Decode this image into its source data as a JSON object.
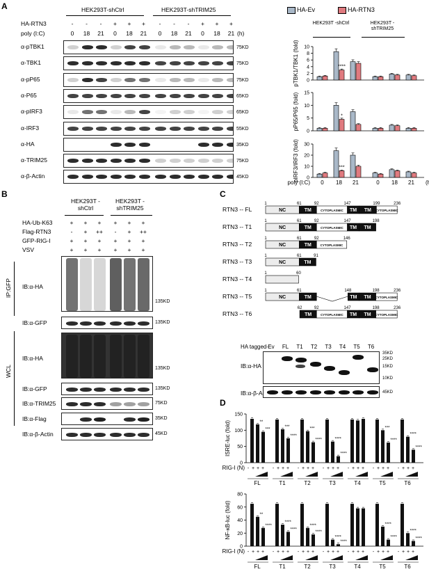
{
  "panel_labels": {
    "a": "A",
    "b": "B",
    "c": "C",
    "d": "D"
  },
  "panelA": {
    "groups": [
      "HEK293T-shCtrl",
      "HEK293T-shTRIM25"
    ],
    "row_labels": {
      "ha": "HA-RTN3",
      "polyic": "poly (I:C)"
    },
    "ha_signs": [
      "-",
      "-",
      "-",
      "+",
      "+",
      "+",
      "-",
      "-",
      "-",
      "+",
      "+",
      "+"
    ],
    "polyic_values": [
      "0",
      "18",
      "21",
      "0",
      "18",
      "21",
      "0",
      "18",
      "21",
      "0",
      "18",
      "21"
    ],
    "unit": "(h)",
    "blots": [
      {
        "label": "α-pTBK1",
        "mw": "75KD"
      },
      {
        "label": "α-TBK1",
        "mw": "75KD"
      },
      {
        "label": "α-pP65",
        "mw": "75KD"
      },
      {
        "label": "α-P65",
        "mw": "65KD"
      },
      {
        "label": "α-pIRF3",
        "mw": "65KD"
      },
      {
        "label": "α-IRF3",
        "mw": "55KD"
      },
      {
        "label": "α-HA",
        "mw": "35KD"
      },
      {
        "label": "α-TRIM25",
        "mw": "75KD"
      },
      {
        "label": "α-β-Actin",
        "mw": "45KD"
      }
    ]
  },
  "chart_data": [
    {
      "type": "bar",
      "ylabel": "pTBK1/TBK1 (fold)",
      "categories": [
        "0",
        "18",
        "21",
        "0",
        "18",
        "21"
      ],
      "groups": [
        "HEK293T -shCtrl",
        "HEK293T -shTRIM25"
      ],
      "ylim": [
        0,
        10
      ],
      "yticks": [
        "0",
        "2",
        "4",
        "6",
        "8",
        "10"
      ],
      "series": [
        {
          "name": "HA-Ev",
          "color": "#a9b8c8",
          "values": [
            1,
            8.5,
            5.5,
            1,
            1.8,
            1.5
          ]
        },
        {
          "name": "HA-RTN3",
          "color": "#e07a7f",
          "values": [
            1.2,
            3,
            5,
            1,
            1.5,
            1.3
          ]
        }
      ],
      "annotations": [
        {
          "category": "18",
          "text": "****"
        }
      ]
    },
    {
      "type": "bar",
      "ylabel": "pP65/P65 (fold)",
      "categories": [
        "0",
        "18",
        "21",
        "0",
        "18",
        "21"
      ],
      "ylim": [
        0,
        15
      ],
      "yticks": [
        "0",
        "5",
        "10",
        "15"
      ],
      "series": [
        {
          "name": "HA-Ev",
          "color": "#a9b8c8",
          "values": [
            1,
            10,
            7.5,
            1,
            2.2,
            1
          ]
        },
        {
          "name": "HA-RTN3",
          "color": "#e07a7f",
          "values": [
            1,
            4.5,
            2.5,
            1,
            2,
            1
          ]
        }
      ],
      "annotations": [
        {
          "category": "18",
          "text": "*"
        }
      ]
    },
    {
      "type": "bar",
      "ylabel": "pIRF3/IRF3 (fold)",
      "xlabel": "poly (I:C)",
      "xunit": "(h)",
      "categories": [
        "0",
        "18",
        "21",
        "0",
        "18",
        "21"
      ],
      "ylim": [
        0,
        30
      ],
      "yticks": [
        "0",
        "10",
        "20",
        "30"
      ],
      "series": [
        {
          "name": "HA-Ev",
          "color": "#a9b8c8",
          "values": [
            3,
            24,
            20,
            4,
            7,
            5
          ]
        },
        {
          "name": "HA-RTN3",
          "color": "#e07a7f",
          "values": [
            4,
            6,
            10,
            3,
            6,
            4
          ]
        }
      ],
      "annotations": [
        {
          "category": "18",
          "text": "***"
        }
      ]
    },
    {
      "type": "bar",
      "ylabel": "ISRE-luc (fold)",
      "xlabel": "RIG-I (N)",
      "groups": [
        "FL",
        "T1",
        "T2",
        "T3",
        "T4",
        "T5",
        "T6"
      ],
      "ylim": [
        0,
        150
      ],
      "yticks": [
        "0",
        "50",
        "100",
        "150"
      ],
      "series": [
        {
          "name": "",
          "values": [
            [
              135,
              118,
              95
            ],
            [
              133,
              103,
              75
            ],
            [
              133,
              97,
              63
            ],
            [
              133,
              65,
              20
            ],
            [
              133,
              130,
              135
            ],
            [
              133,
              100,
              62
            ],
            [
              133,
              80,
              40
            ]
          ]
        }
      ],
      "annotations": [
        [
          "",
          "**",
          "***"
        ],
        [
          "",
          "***",
          "****"
        ],
        [
          "",
          "***",
          "****"
        ],
        [
          "",
          "****",
          "****"
        ],
        [
          "",
          "",
          ""
        ],
        [
          "",
          "***",
          "****"
        ],
        [
          "",
          "****",
          "****"
        ]
      ]
    },
    {
      "type": "bar",
      "ylabel": "NF-κB-luc (fold)",
      "xlabel": "RIG-I (N)",
      "groups": [
        "FL",
        "T1",
        "T2",
        "T3",
        "T4",
        "T5",
        "T6"
      ],
      "ylim": [
        0,
        80
      ],
      "yticks": [
        "0",
        "20",
        "40",
        "60",
        "80"
      ],
      "series": [
        {
          "name": "",
          "values": [
            [
              65,
              45,
              28
            ],
            [
              65,
              33,
              22
            ],
            [
              65,
              28,
              18
            ],
            [
              65,
              10,
              3
            ],
            [
              65,
              58,
              58
            ],
            [
              65,
              30,
              10
            ],
            [
              65,
              20,
              8
            ]
          ]
        }
      ],
      "annotations": [
        [
          "",
          "**",
          "****"
        ],
        [
          "",
          "****",
          "****"
        ],
        [
          "",
          "****",
          "****"
        ],
        [
          "",
          "****",
          "****"
        ],
        [
          "",
          "",
          ""
        ],
        [
          "",
          "****",
          "****"
        ],
        [
          "",
          "****",
          "****"
        ]
      ]
    }
  ],
  "panelB": {
    "groups": [
      "HEK293T -shCtrl",
      "HEK293T -shTRIM25"
    ],
    "rows": [
      {
        "label": "HA-Ub-K63",
        "signs": [
          "+",
          "+",
          "+",
          "+",
          "+",
          "+"
        ]
      },
      {
        "label": "Flag-RTN3",
        "signs": [
          "-",
          "+",
          "++",
          "-",
          "+",
          "++"
        ]
      },
      {
        "label": "GFP-RIG-I",
        "signs": [
          "+",
          "+",
          "+",
          "+",
          "+",
          "+"
        ]
      },
      {
        "label": "VSV",
        "signs": [
          "+",
          "+",
          "+",
          "+",
          "+",
          "+"
        ]
      }
    ],
    "ip_label": "IP:GFP",
    "wcl_label": "WCL",
    "ip_blots": [
      {
        "label": "IB:α-HA",
        "mw": "135KD"
      },
      {
        "label": "IB:α-GFP",
        "mw": "135KD"
      }
    ],
    "wcl_blots": [
      {
        "label": "IB:α-HA",
        "mw": "135KD"
      },
      {
        "label": "IB:α-GFP",
        "mw": "135KD"
      },
      {
        "label": "IB:α-TRIM25",
        "mw": "75KD"
      },
      {
        "label": "IB:α-Flag",
        "mw": "35KD"
      },
      {
        "label": "IB:α-β-Actin",
        "mw": "45KD"
      }
    ]
  },
  "panelC": {
    "constructs": [
      {
        "name": "RTN3 -- FL",
        "nums": [
          "1",
          "61",
          "92",
          "147",
          "199",
          "236"
        ]
      },
      {
        "name": "RTN3 -- T1",
        "nums": [
          "1",
          "61",
          "92",
          "147",
          "198"
        ]
      },
      {
        "name": "RTN3 -- T2",
        "nums": [
          "1",
          "61",
          "92",
          "146"
        ]
      },
      {
        "name": "RTN3 -- T3",
        "nums": [
          "1",
          "61",
          "91"
        ]
      },
      {
        "name": "RTN3 -- T4",
        "nums": [
          "1",
          "60"
        ]
      },
      {
        "name": "RTN3 -- T5",
        "nums": [
          "1",
          "61",
          "148",
          "198",
          "236"
        ]
      },
      {
        "name": "RTN3 -- T6",
        "nums": [
          "62",
          "92",
          "147",
          "198",
          "236"
        ]
      }
    ],
    "domains": {
      "nc": "NC",
      "tm": "TM",
      "cyto": "CYTOPLASMIC"
    },
    "lanes_label": "HA tagged-",
    "lanes": [
      "Ev",
      "FL",
      "T1",
      "T2",
      "T3",
      "T4",
      "T5",
      "T6"
    ],
    "blots": [
      {
        "label": "IB:α-HA"
      },
      {
        "label": "IB:α-β-Actin"
      }
    ],
    "mw": [
      "35KD",
      "25KD",
      "15KD",
      "10KD",
      "45KD"
    ]
  }
}
